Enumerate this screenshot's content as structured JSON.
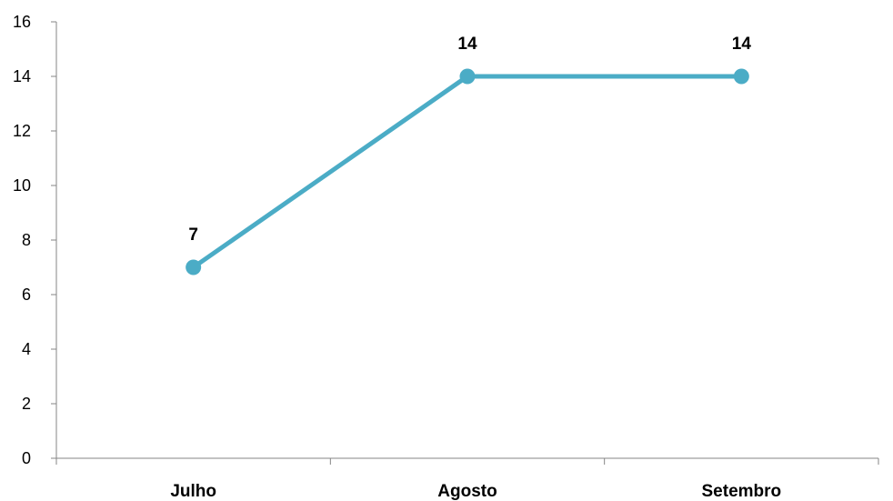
{
  "chart_data": {
    "type": "line",
    "categories": [
      "Julho",
      "Agosto",
      "Setembro"
    ],
    "series": [
      {
        "values": [
          7,
          14,
          14
        ]
      }
    ],
    "data_labels": [
      "7",
      "14",
      "14"
    ],
    "y_ticks": [
      "0",
      "2",
      "4",
      "6",
      "8",
      "10",
      "12",
      "14",
      "16"
    ],
    "ylim": [
      0,
      16
    ],
    "grid": false,
    "legend": "none",
    "colors": {
      "line": "#4BACC6",
      "axis": "#868686"
    }
  }
}
